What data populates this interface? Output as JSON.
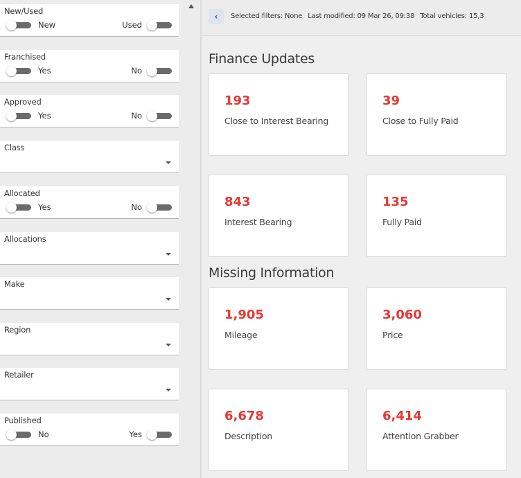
{
  "sidebar": {
    "filters": [
      {
        "label": "New/Used",
        "type": "toggle",
        "left": "New",
        "right": "Used"
      },
      {
        "label": "Franchised",
        "type": "toggle",
        "left": "Yes",
        "right": "No"
      },
      {
        "label": "Approved",
        "type": "toggle",
        "left": "Yes",
        "right": "No"
      },
      {
        "label": "Class",
        "type": "dropdown",
        "value": ""
      },
      {
        "label": "Allocated",
        "type": "toggle",
        "left": "Yes",
        "right": "No"
      },
      {
        "label": "Allocations",
        "type": "dropdown",
        "value": ""
      },
      {
        "label": "Make",
        "type": "dropdown",
        "value": ""
      },
      {
        "label": "Region",
        "type": "dropdown",
        "value": ""
      },
      {
        "label": "Retailer",
        "type": "dropdown",
        "value": ""
      },
      {
        "label": "Published",
        "type": "toggle",
        "left": "No",
        "right": "Yes"
      }
    ]
  },
  "topbar": {
    "back_icon": "chevron-left-icon",
    "selected_filters": "Selected filters: None",
    "last_modified": "Last modified: 09 Mar 26, 09:38",
    "total_vehicles": "Total vehicles: 15,3"
  },
  "sections": [
    {
      "title": "Finance Updates",
      "cards": [
        {
          "value": "193",
          "label": "Close to Interest Bearing"
        },
        {
          "value": "39",
          "label": "Close to Fully Paid"
        },
        {
          "value": "843",
          "label": "Interest Bearing"
        },
        {
          "value": "135",
          "label": "Fully Paid"
        }
      ]
    },
    {
      "title": "Missing Information",
      "cards": [
        {
          "value": "1,905",
          "label": "Mileage"
        },
        {
          "value": "3,060",
          "label": "Price"
        },
        {
          "value": "6,678",
          "label": "Description"
        },
        {
          "value": "6,414",
          "label": "Attention Grabber"
        }
      ]
    }
  ],
  "colors": {
    "accent_red": "#e53935",
    "toggle_off": "#6b6b6b",
    "back_button_bg": "#dde4ee",
    "back_button_fg": "#2f5b9a"
  }
}
